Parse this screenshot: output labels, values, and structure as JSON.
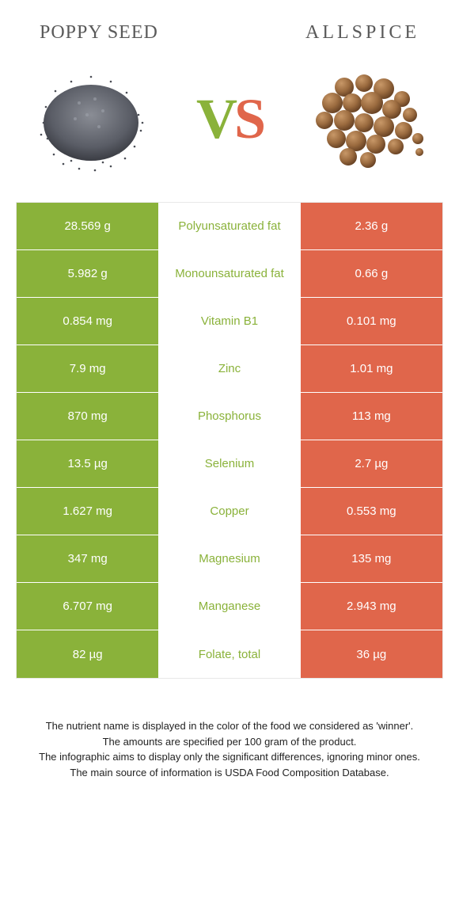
{
  "header": {
    "left_title": "Poppy seed",
    "right_title": "Allspice"
  },
  "vs": {
    "v": "V",
    "s": "S"
  },
  "colors": {
    "green": "#8ab23a",
    "orange": "#e0664b",
    "bg": "#ffffff",
    "text": "#5a5a5a",
    "border": "#e8e8e8"
  },
  "rows": [
    {
      "left": "28.569 g",
      "label": "Polyunsaturated fat",
      "right": "2.36 g",
      "winner": "green"
    },
    {
      "left": "5.982 g",
      "label": "Monounsaturated fat",
      "right": "0.66 g",
      "winner": "green"
    },
    {
      "left": "0.854 mg",
      "label": "Vitamin B1",
      "right": "0.101 mg",
      "winner": "green"
    },
    {
      "left": "7.9 mg",
      "label": "Zinc",
      "right": "1.01 mg",
      "winner": "green"
    },
    {
      "left": "870 mg",
      "label": "Phosphorus",
      "right": "113 mg",
      "winner": "green"
    },
    {
      "left": "13.5 µg",
      "label": "Selenium",
      "right": "2.7 µg",
      "winner": "green"
    },
    {
      "left": "1.627 mg",
      "label": "Copper",
      "right": "0.553 mg",
      "winner": "green"
    },
    {
      "left": "347 mg",
      "label": "Magnesium",
      "right": "135 mg",
      "winner": "green"
    },
    {
      "left": "6.707 mg",
      "label": "Manganese",
      "right": "2.943 mg",
      "winner": "green"
    },
    {
      "left": "82 µg",
      "label": "Folate, total",
      "right": "36 µg",
      "winner": "green"
    }
  ],
  "footnote": {
    "l1": "The nutrient name is displayed in the color of the food we considered as 'winner'.",
    "l2": "The amounts are specified per 100 gram of the product.",
    "l3": "The infographic aims to display only the significant differences, ignoring minor ones.",
    "l4": "The main source of information is USDA Food Composition Database."
  }
}
